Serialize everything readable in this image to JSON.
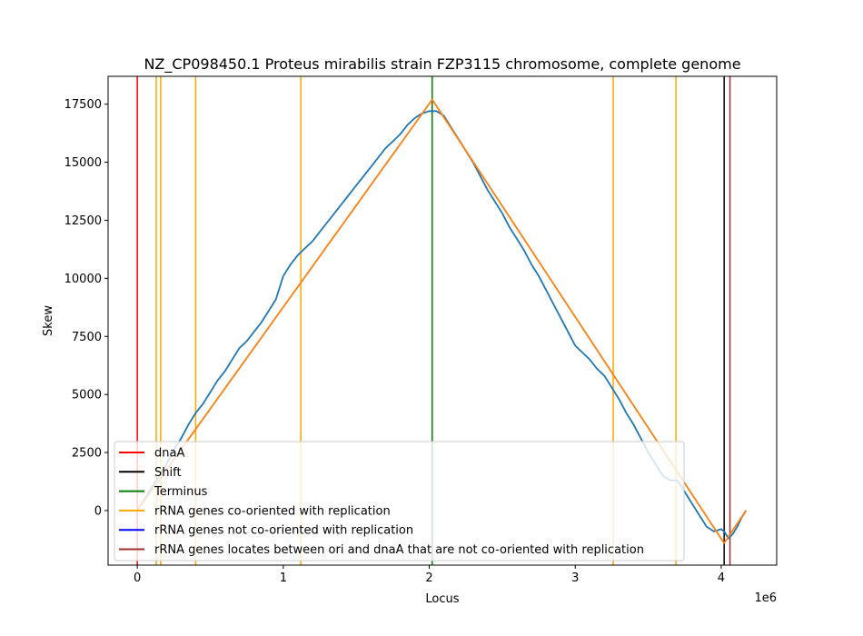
{
  "chart_data": {
    "type": "line",
    "title": "NZ_CP098450.1 Proteus mirabilis strain FZP3115 chromosome, complete genome",
    "xlabel": "Locus",
    "ylabel": "Skew",
    "x_offset_label": "1e6",
    "xlim": [
      -200000,
      4380000
    ],
    "ylim": [
      -2350,
      18700
    ],
    "xticks": [
      {
        "value": 0,
        "label": "0"
      },
      {
        "value": 1000000,
        "label": "1"
      },
      {
        "value": 2000000,
        "label": "2"
      },
      {
        "value": 3000000,
        "label": "3"
      },
      {
        "value": 4000000,
        "label": "4"
      }
    ],
    "yticks": [
      {
        "value": 0,
        "label": "0"
      },
      {
        "value": 2500,
        "label": "2500"
      },
      {
        "value": 5000,
        "label": "5000"
      },
      {
        "value": 7500,
        "label": "7500"
      },
      {
        "value": 10000,
        "label": "10000"
      },
      {
        "value": 12500,
        "label": "12500"
      },
      {
        "value": 15000,
        "label": "15000"
      },
      {
        "value": 17500,
        "label": "17500"
      }
    ],
    "grid": false,
    "legend_position": "lower-left",
    "series": [
      {
        "color": "#1f77b4",
        "x": [
          0,
          50000,
          100000,
          150000,
          200000,
          250000,
          300000,
          350000,
          400000,
          450000,
          500000,
          550000,
          600000,
          650000,
          700000,
          750000,
          800000,
          850000,
          900000,
          950000,
          970000,
          990000,
          1000000,
          1050000,
          1100000,
          1150000,
          1200000,
          1250000,
          1300000,
          1350000,
          1400000,
          1450000,
          1500000,
          1550000,
          1600000,
          1650000,
          1700000,
          1750000,
          1800000,
          1850000,
          1900000,
          1950000,
          2000000,
          2050000,
          2100000,
          2150000,
          2200000,
          2250000,
          2300000,
          2350000,
          2400000,
          2450000,
          2500000,
          2550000,
          2600000,
          2650000,
          2700000,
          2750000,
          2800000,
          2850000,
          2900000,
          2950000,
          3000000,
          3050000,
          3100000,
          3150000,
          3200000,
          3250000,
          3300000,
          3350000,
          3400000,
          3450000,
          3500000,
          3550000,
          3600000,
          3650000,
          3700000,
          3750000,
          3800000,
          3850000,
          3900000,
          3950000,
          4000000,
          4020000,
          4050000,
          4080000,
          4110000,
          4140000,
          4170000
        ],
        "y": [
          0,
          500,
          1000,
          1500,
          2000,
          2600,
          3100,
          3700,
          4200,
          4600,
          5100,
          5600,
          6000,
          6500,
          7000,
          7300,
          7700,
          8100,
          8600,
          9100,
          9500,
          9900,
          10100,
          10600,
          11000,
          11300,
          11600,
          12000,
          12400,
          12800,
          13200,
          13600,
          14000,
          14400,
          14800,
          15200,
          15600,
          15900,
          16200,
          16600,
          16900,
          17100,
          17200,
          17200,
          17000,
          16500,
          16000,
          15500,
          15000,
          14400,
          13800,
          13300,
          12800,
          12200,
          11700,
          11200,
          10600,
          10100,
          9500,
          8900,
          8300,
          7700,
          7100,
          6800,
          6500,
          6100,
          5800,
          5300,
          4800,
          4200,
          3700,
          3100,
          2500,
          2000,
          1500,
          1300,
          1300,
          800,
          300,
          -200,
          -700,
          -900,
          -800,
          -900,
          -1200,
          -1000,
          -700,
          -300,
          0
        ]
      },
      {
        "color": "#ff7f0e",
        "x": [
          0,
          2020000,
          4020000,
          4170000
        ],
        "y": [
          0,
          17700,
          -1400,
          0
        ]
      }
    ],
    "markers": [
      {
        "name": "dnaA",
        "color": "#ff0000",
        "x": [
          0
        ]
      },
      {
        "name": "Shift",
        "color": "#000000",
        "x": [
          4020000
        ]
      },
      {
        "name": "Terminus",
        "color": "#008000",
        "x": [
          2020000
        ]
      },
      {
        "name": "rRNA genes co-oriented with replication",
        "color": "#ffa500",
        "x": [
          130000,
          160000,
          400000,
          1120000,
          3260000,
          3690000
        ]
      },
      {
        "name": "rRNA genes not co-oriented with replication",
        "color": "#0000ff",
        "x": []
      },
      {
        "name": "rRNA genes locates between ori and dnaA that are not co-oriented with replication",
        "color": "#a52a2a",
        "x": [
          4060000
        ]
      }
    ]
  }
}
